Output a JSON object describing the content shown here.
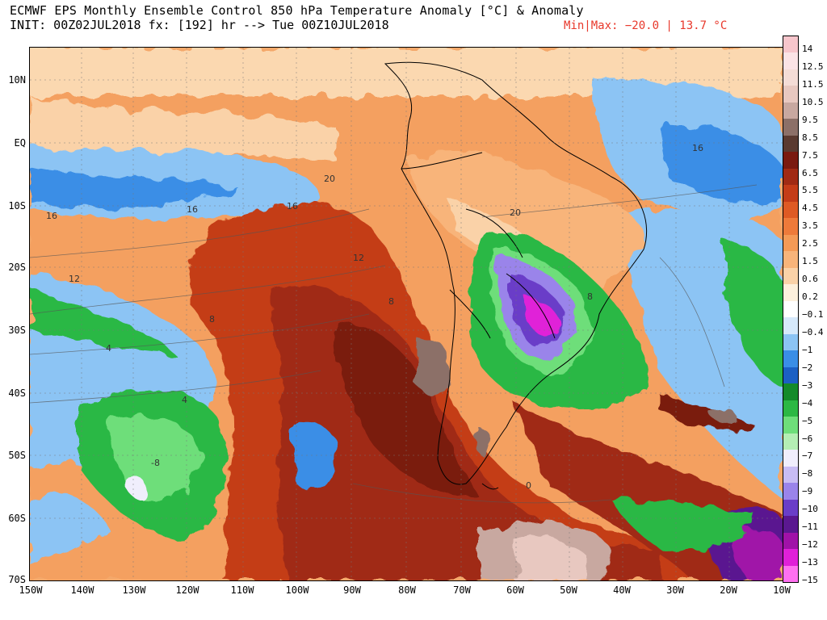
{
  "header": {
    "title_line1": "ECMWF EPS Monthly Ensemble Control 850 hPa Temperature Anomaly [°C] & Anomaly",
    "title_line2": "INIT: 00Z02JUL2018 fx: [192] hr --> Tue 00Z10JUL2018",
    "minmax": "Min|Max: −20.0 | 13.7 °C"
  },
  "map": {
    "region": "South America and surrounding oceans",
    "lat_labels": [
      "10N",
      "EQ",
      "10S",
      "20S",
      "30S",
      "40S",
      "50S",
      "60S",
      "70S"
    ],
    "lon_labels": [
      "150W",
      "140W",
      "130W",
      "120W",
      "110W",
      "100W",
      "90W",
      "80W",
      "70W",
      "60W",
      "50W",
      "40W",
      "30W",
      "20W",
      "10W"
    ],
    "contour_labels": [
      "20",
      "16",
      "16",
      "16",
      "12",
      "12",
      "8",
      "8",
      "4",
      "4",
      "20",
      "16",
      "8",
      "0",
      "-8"
    ]
  },
  "colorbar": {
    "labels": [
      "14",
      "12.5",
      "11.5",
      "10.5",
      "9.5",
      "8.5",
      "7.5",
      "6.5",
      "5.5",
      "4.5",
      "3.5",
      "2.5",
      "1.5",
      "0.6",
      "0.2",
      "−0.1",
      "−0.4",
      "−1",
      "−2",
      "−3",
      "−4",
      "−5",
      "−6",
      "−7",
      "−8",
      "−9",
      "−10",
      "−11",
      "−12",
      "−13",
      "−15"
    ],
    "colors": [
      "#f7c6cc",
      "#fbe3e6",
      "#f4dcd6",
      "#e8c8c0",
      "#c8a8a0",
      "#8c7068",
      "#5a3a30",
      "#7a1a10",
      "#a02a14",
      "#c43c18",
      "#de5a24",
      "#ee7a3a",
      "#f49a56",
      "#f8b47a",
      "#fad2a8",
      "#fdf0dc",
      "#ffffff",
      "#d6e9fb",
      "#8cc4f4",
      "#3a8ee6",
      "#1c60c4",
      "#148a2a",
      "#2cb844",
      "#6ede7a",
      "#b4eeb4",
      "#f0eefc",
      "#c8bcf4",
      "#9a84ea",
      "#6a3ec8",
      "#5a1890",
      "#a012a8",
      "#e020d8",
      "#ff70f0"
    ]
  }
}
